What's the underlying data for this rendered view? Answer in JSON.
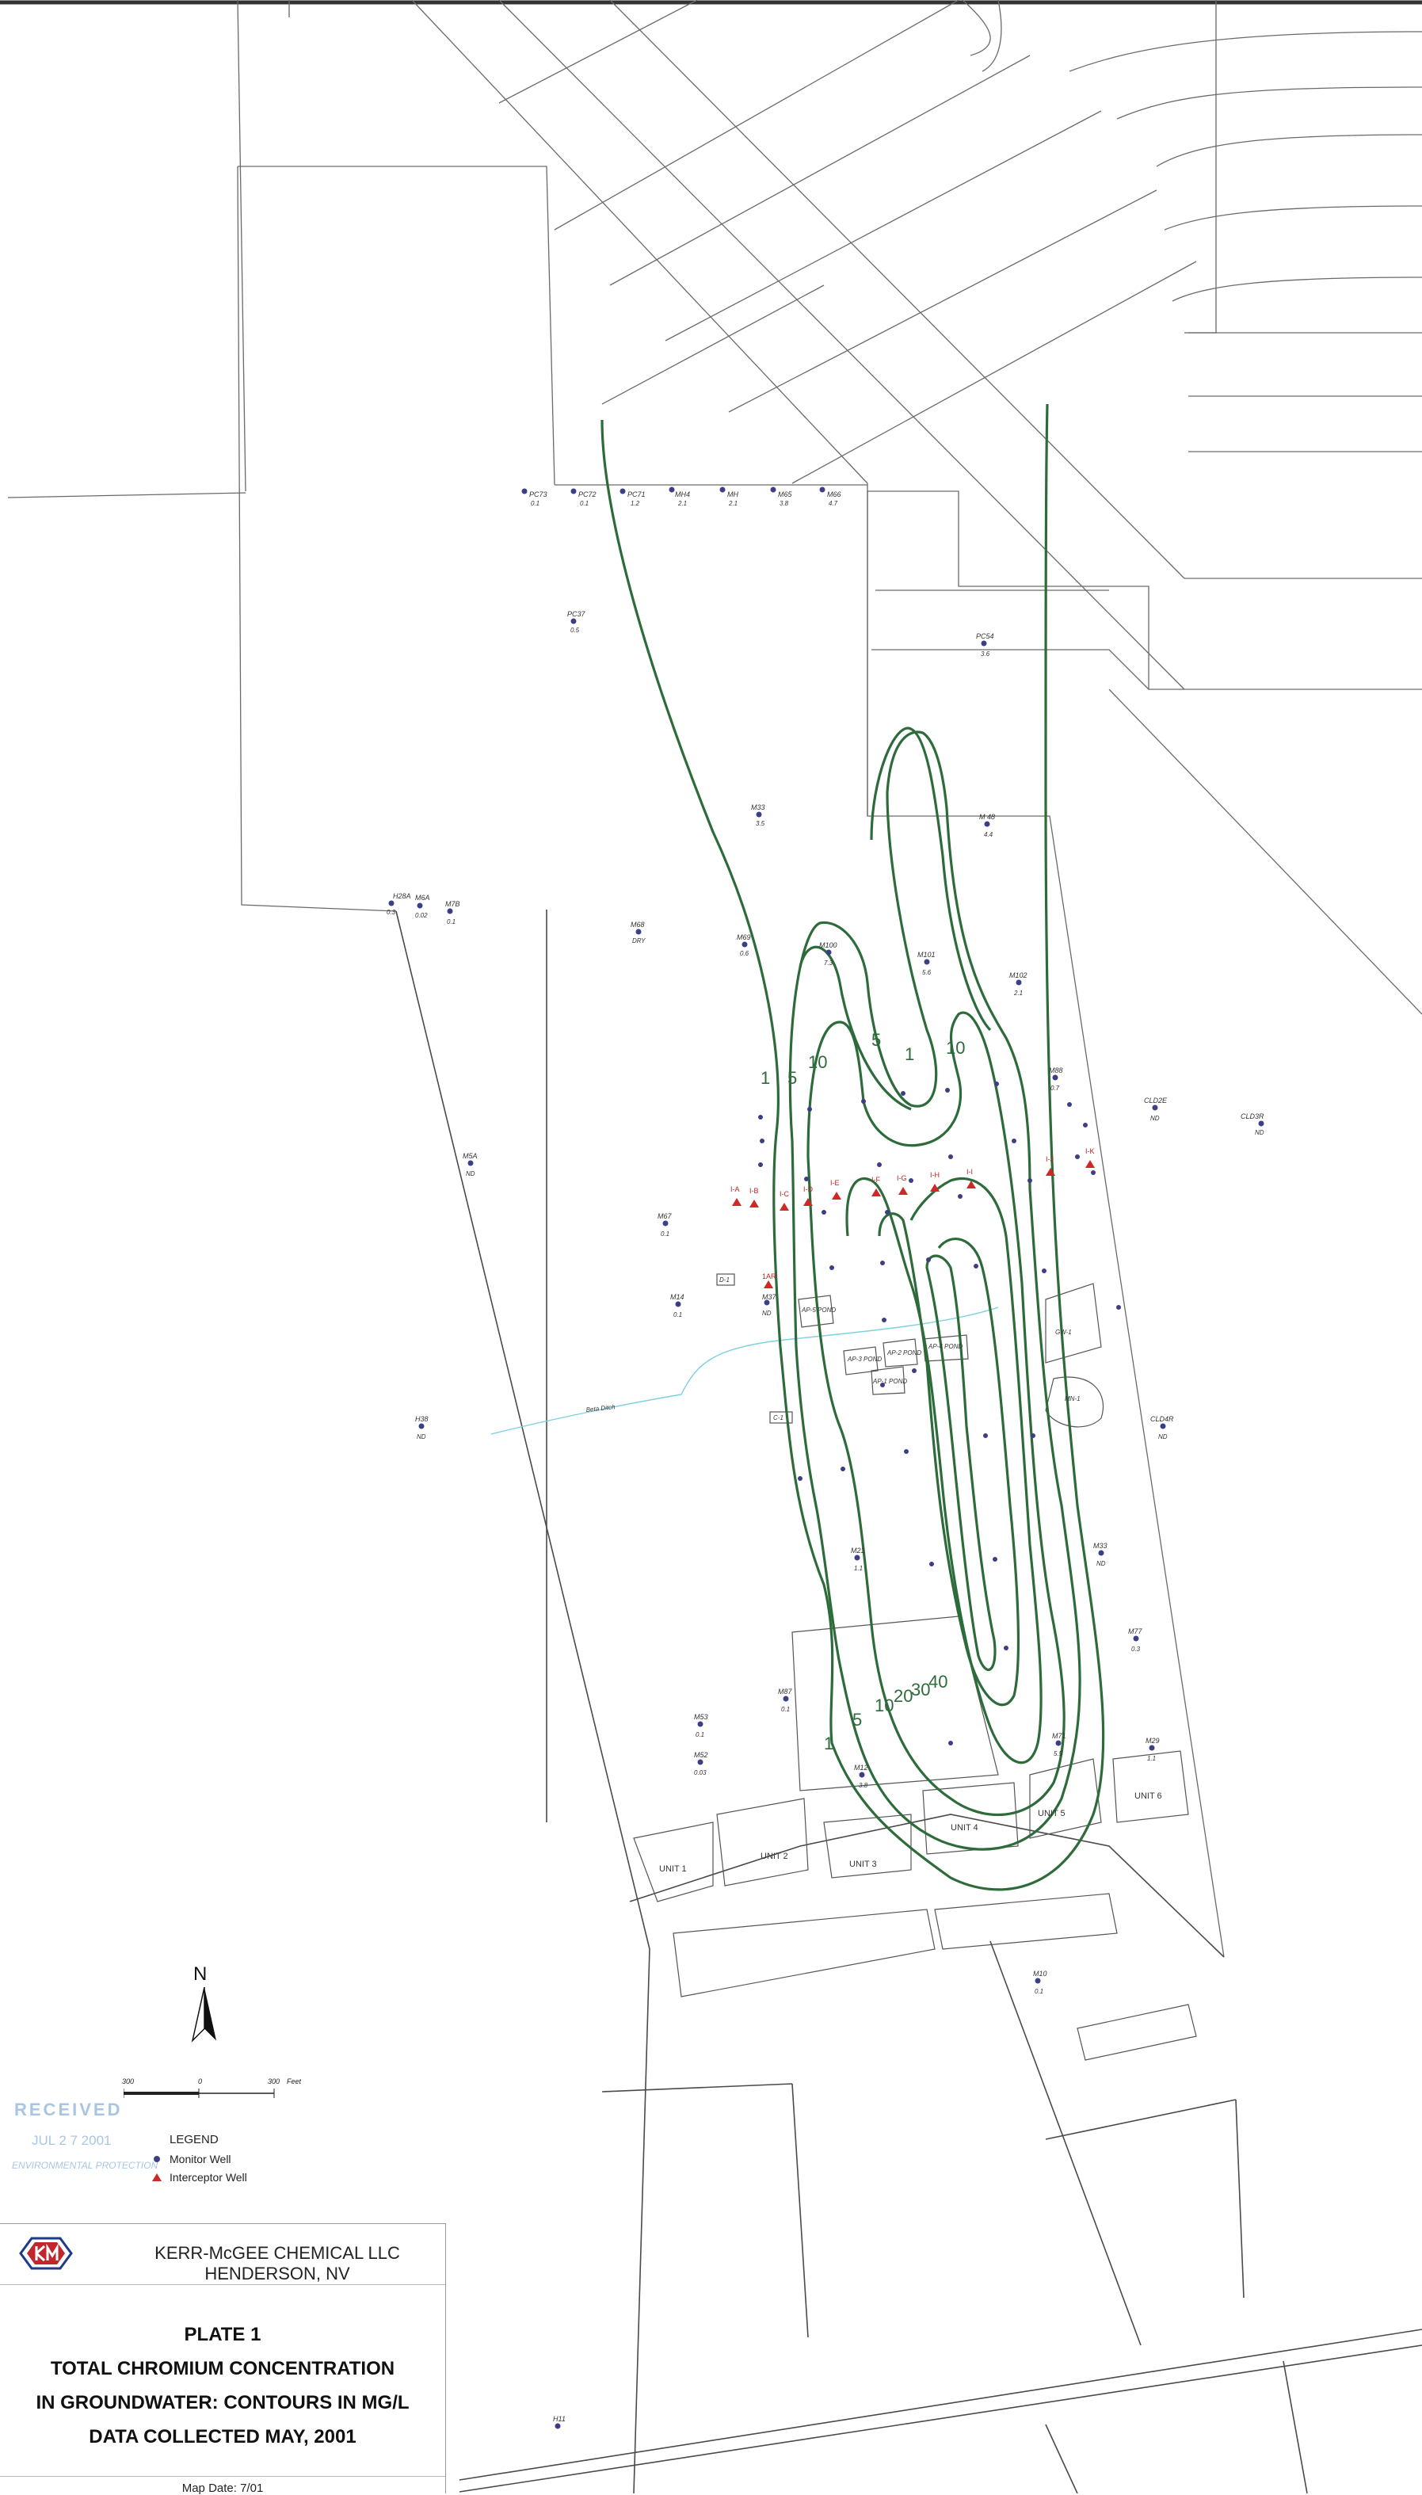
{
  "contour_labels": [
    "1",
    "5",
    "10",
    "5",
    "1",
    "10",
    "1",
    "5",
    "10",
    "20",
    "30",
    "40"
  ],
  "monitor_wells": [
    {
      "id": "PC73",
      "value": "0.1"
    },
    {
      "id": "PC72",
      "value": "0.1"
    },
    {
      "id": "PC71",
      "value": "1.2"
    },
    {
      "id": "MH4",
      "value": "2.1"
    },
    {
      "id": "MH",
      "value": "2.1"
    },
    {
      "id": "M65",
      "value": "3.8"
    },
    {
      "id": "M66",
      "value": "4.7"
    },
    {
      "id": "PC37",
      "value": "0.5"
    },
    {
      "id": "PC54",
      "value": "3.6"
    },
    {
      "id": "M33",
      "value": "3.5"
    },
    {
      "id": "M 48",
      "value": "4.4"
    },
    {
      "id": "H28A",
      "value": "0.3"
    },
    {
      "id": "M6A",
      "value": "0.02"
    },
    {
      "id": "M7B",
      "value": "0.1"
    },
    {
      "id": "M68",
      "value": "DRY"
    },
    {
      "id": "M69",
      "value": "0.6"
    },
    {
      "id": "M100",
      "value": "7.3"
    },
    {
      "id": "M101",
      "value": "5.6"
    },
    {
      "id": "M102",
      "value": "2.1"
    },
    {
      "id": "M88",
      "value": "0.7"
    },
    {
      "id": "CLD2E",
      "value": "ND"
    },
    {
      "id": "CLD3R",
      "value": "ND"
    },
    {
      "id": "M5A",
      "value": "ND"
    },
    {
      "id": "M67",
      "value": "0.1"
    },
    {
      "id": "M14",
      "value": "0.1"
    },
    {
      "id": "H38",
      "value": "ND"
    },
    {
      "id": "M37",
      "value": "ND"
    },
    {
      "id": "CLD4R",
      "value": "ND"
    },
    {
      "id": "M21",
      "value": "1.1"
    },
    {
      "id": "M33",
      "value": "ND"
    },
    {
      "id": "M77",
      "value": "0.3"
    },
    {
      "id": "M87",
      "value": "0.1"
    },
    {
      "id": "M53",
      "value": "0.1"
    },
    {
      "id": "M52",
      "value": "0.03"
    },
    {
      "id": "M12",
      "value": "3.8"
    },
    {
      "id": "M71",
      "value": "5.5"
    },
    {
      "id": "M29",
      "value": "1.1"
    },
    {
      "id": "M10",
      "value": "0.1"
    },
    {
      "id": "H11",
      "value": ""
    }
  ],
  "interceptor_wells": [
    "1AR",
    "I-A",
    "I-B",
    "I-C",
    "I-D",
    "I-E",
    "I-F",
    "I-G",
    "I-H",
    "I-I",
    "I-J",
    "I-K"
  ],
  "map_labels": {
    "ditch": "Beta Ditch",
    "pond_ap5": "AP-5 POND",
    "pond_ap3": "AP-3 POND",
    "pond_ap2": "AP-2 POND",
    "pond_ap4": "AP-4 POND",
    "pond_ap1": "AP-1 POND",
    "d1": "D-1",
    "c1": "C-1",
    "gw": "GW-1",
    "mn1": "MN-1"
  },
  "units": [
    "UNIT 1",
    "UNIT 2",
    "UNIT 3",
    "UNIT 4",
    "UNIT 5",
    "UNIT 6"
  ],
  "north": "N",
  "scale": {
    "left": "300",
    "mid": "0",
    "right": "300",
    "unit": "Feet"
  },
  "stamp": {
    "line1": "RECEIVED",
    "line2": "JUL 2 7 2001",
    "line3": "ENVIRONMENTAL PROTECTION"
  },
  "legend": {
    "title": "LEGEND",
    "monitor": "Monitor Well",
    "interceptor": "Interceptor Well"
  },
  "title_block": {
    "company": "KERR-McGEE CHEMICAL LLC",
    "location": "HENDERSON, NV",
    "plate": "PLATE 1",
    "line1": "TOTAL CHROMIUM CONCENTRATION",
    "line2": "IN GROUNDWATER: CONTOURS IN MG/L",
    "line3": "DATA COLLECTED MAY, 2001",
    "map_date": "Map Date: 7/01"
  },
  "colors": {
    "contour": "#2e6b3a",
    "monitor_well": "#3d3f86",
    "interceptor_well": "#d02828",
    "ditch": "#7fd0e0"
  }
}
